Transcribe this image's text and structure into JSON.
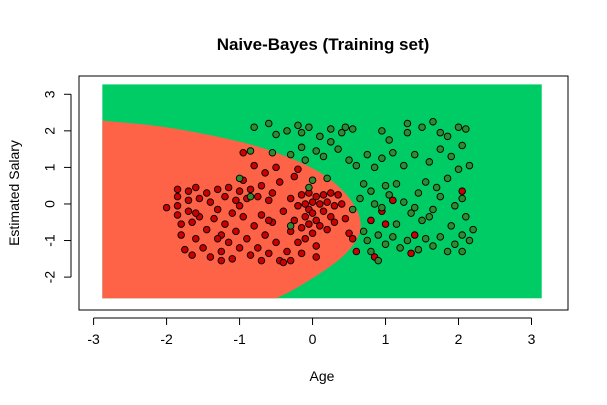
{
  "chart_data": {
    "type": "scatter",
    "title": "Naive-Bayes (Training set)",
    "xlabel": "Age",
    "ylabel": "Estimated Salary",
    "xlim": [
      -3.2,
      3.5
    ],
    "ylim": [
      -2.9,
      3.5
    ],
    "x_ticks": [
      -3,
      -2,
      -1,
      0,
      1,
      2,
      3
    ],
    "y_ticks": [
      -2,
      -1,
      0,
      1,
      2,
      3
    ],
    "grid": false,
    "colors": {
      "region_0": "#FF6347",
      "region_1": "#00CC66",
      "point_0": "#CC0000",
      "point_1": "#2E8B2E",
      "point_outline": "#000000",
      "frame": "#000000"
    },
    "decision_region": {
      "x_range": [
        -2.88,
        3.14
      ],
      "y_range": [
        -2.58,
        3.27
      ],
      "class_0_region": "inside the curved boundary on the left",
      "boundary": [
        {
          "x": -2.88,
          "y": 2.28
        },
        {
          "x": -2.0,
          "y": 2.12
        },
        {
          "x": -1.0,
          "y": 1.72
        },
        {
          "x": -0.5,
          "y": 1.42
        },
        {
          "x": 0.0,
          "y": 1.0
        },
        {
          "x": 0.3,
          "y": 0.6
        },
        {
          "x": 0.52,
          "y": 0.15
        },
        {
          "x": 0.66,
          "y": -0.35
        },
        {
          "x": 0.66,
          "y": -0.85
        },
        {
          "x": 0.45,
          "y": -1.4
        },
        {
          "x": 0.15,
          "y": -1.85
        },
        {
          "x": -0.3,
          "y": -2.4
        },
        {
          "x": -0.5,
          "y": -2.58
        }
      ]
    },
    "series": [
      {
        "class": 0,
        "points": [
          [
            -1.85,
            0.4
          ],
          [
            -1.85,
            0.2
          ],
          [
            -1.85,
            -0.05
          ],
          [
            -1.85,
            -0.3
          ],
          [
            -1.8,
            -0.55
          ],
          [
            -1.8,
            -0.85
          ],
          [
            -1.75,
            -1.25
          ],
          [
            -1.7,
            0.35
          ],
          [
            -1.7,
            0.1
          ],
          [
            -1.7,
            -0.2
          ],
          [
            -1.65,
            -0.5
          ],
          [
            -1.65,
            -1.4
          ],
          [
            -1.6,
            0.45
          ],
          [
            -1.6,
            -0.95
          ],
          [
            -1.55,
            0.15
          ],
          [
            -1.55,
            -0.35
          ],
          [
            -1.5,
            -1.2
          ],
          [
            -1.45,
            0.3
          ],
          [
            -1.45,
            -0.7
          ],
          [
            -1.4,
            0.05
          ],
          [
            -1.4,
            -1.45
          ],
          [
            -1.35,
            -0.4
          ],
          [
            -1.3,
            0.4
          ],
          [
            -1.3,
            -0.15
          ],
          [
            -1.25,
            -0.85
          ],
          [
            -1.25,
            -1.3
          ],
          [
            -1.2,
            0.2
          ],
          [
            -1.2,
            -0.55
          ],
          [
            -1.15,
            0.45
          ],
          [
            -1.15,
            -1.05
          ],
          [
            -1.1,
            -0.25
          ],
          [
            -1.1,
            -1.5
          ],
          [
            -1.05,
            0.1
          ],
          [
            -1.05,
            -0.75
          ],
          [
            -1.0,
            0.35
          ],
          [
            -1.0,
            -1.2
          ],
          [
            -0.95,
            -0.35
          ],
          [
            -0.95,
            0.65
          ],
          [
            -0.9,
            0.15
          ],
          [
            -0.9,
            -0.95
          ],
          [
            -0.85,
            -1.4
          ],
          [
            -0.85,
            0.4
          ],
          [
            -0.8,
            -0.6
          ],
          [
            -0.8,
            1.05
          ],
          [
            -0.75,
            0.2
          ],
          [
            -0.75,
            -1.2
          ],
          [
            -0.7,
            0.5
          ],
          [
            -0.7,
            -0.3
          ],
          [
            -0.7,
            -1.55
          ],
          [
            -0.65,
            0.85
          ],
          [
            -0.65,
            -0.85
          ],
          [
            -0.6,
            0.1
          ],
          [
            -0.6,
            -1.35
          ],
          [
            -0.55,
            0.3
          ],
          [
            -0.55,
            -0.5
          ],
          [
            -0.5,
            1.0
          ],
          [
            -0.5,
            -1.05
          ],
          [
            -0.45,
            0.6
          ],
          [
            -0.45,
            -1.55
          ],
          [
            -0.4,
            -0.2
          ],
          [
            -0.35,
            -1.3
          ],
          [
            -0.3,
            0.15
          ],
          [
            -0.3,
            -0.75
          ],
          [
            -0.25,
            0.75
          ],
          [
            -0.25,
            -0.45
          ],
          [
            -0.2,
            -1.05
          ],
          [
            -0.2,
            0.95
          ],
          [
            -0.15,
            0.25
          ],
          [
            -0.15,
            -0.65
          ],
          [
            -0.15,
            -1.35
          ],
          [
            -0.1,
            0.0
          ],
          [
            -0.1,
            -0.35
          ],
          [
            -0.1,
            -0.95
          ],
          [
            -0.05,
            0.3
          ],
          [
            -0.05,
            -0.15
          ],
          [
            -0.05,
            -0.55
          ],
          [
            0.0,
            0.05
          ],
          [
            0.0,
            -0.25
          ],
          [
            0.0,
            -0.8
          ],
          [
            0.05,
            0.2
          ],
          [
            0.05,
            -0.45
          ],
          [
            0.05,
            -1.15
          ],
          [
            0.1,
            0.0
          ],
          [
            0.1,
            -0.6
          ],
          [
            0.15,
            0.25
          ],
          [
            0.15,
            -0.2
          ],
          [
            0.2,
            -0.7
          ],
          [
            0.2,
            0.05
          ],
          [
            0.25,
            -0.35
          ],
          [
            0.25,
            0.3
          ],
          [
            0.3,
            -0.05
          ],
          [
            0.3,
            -0.5
          ],
          [
            0.35,
            0.25
          ],
          [
            0.4,
            0.0
          ],
          [
            0.45,
            -0.4
          ],
          [
            0.5,
            -0.8
          ],
          [
            0.55,
            -0.95
          ],
          [
            -2.0,
            -0.1
          ],
          [
            -1.6,
            -0.25
          ],
          [
            -1.3,
            -0.95
          ],
          [
            -1.0,
            -0.05
          ],
          [
            -0.6,
            -0.45
          ],
          [
            -0.3,
            -1.55
          ],
          [
            0.95,
            -0.2
          ],
          [
            1.1,
            0.1
          ],
          [
            0.8,
            -0.45
          ],
          [
            1.0,
            -0.55
          ],
          [
            1.4,
            -0.85
          ],
          [
            2.05,
            0.35
          ],
          [
            1.35,
            -1.35
          ],
          [
            0.85,
            -1.45
          ],
          [
            -0.95,
            1.4
          ],
          [
            0.6,
            -1.3
          ],
          [
            -0.4,
            -1.6
          ],
          [
            -1.25,
            -1.55
          ],
          [
            -0.2,
            -0.05
          ],
          [
            0.05,
            -1.45
          ]
        ]
      },
      {
        "class": 1,
        "points": [
          [
            -0.8,
            2.1
          ],
          [
            -0.6,
            2.2
          ],
          [
            -0.5,
            1.9
          ],
          [
            -0.35,
            2.0
          ],
          [
            -0.2,
            2.15
          ],
          [
            -0.05,
            2.1
          ],
          [
            0.1,
            1.85
          ],
          [
            0.25,
            1.7
          ],
          [
            0.4,
            1.95
          ],
          [
            0.55,
            2.05
          ],
          [
            0.95,
            2.0
          ],
          [
            1.05,
            1.75
          ],
          [
            1.3,
            1.95
          ],
          [
            1.5,
            2.1
          ],
          [
            1.65,
            2.25
          ],
          [
            1.75,
            1.95
          ],
          [
            2.0,
            2.1
          ],
          [
            2.1,
            2.05
          ],
          [
            -1.0,
            0.7
          ],
          [
            -0.85,
            0.2
          ],
          [
            -0.3,
            1.35
          ],
          [
            -0.15,
            1.55
          ],
          [
            -0.1,
            1.2
          ],
          [
            0.05,
            1.45
          ],
          [
            0.15,
            1.3
          ],
          [
            0.35,
            1.5
          ],
          [
            0.5,
            1.2
          ],
          [
            0.6,
            1.05
          ],
          [
            0.75,
            1.35
          ],
          [
            0.85,
            1.0
          ],
          [
            0.95,
            1.25
          ],
          [
            1.1,
            1.4
          ],
          [
            1.25,
            1.05
          ],
          [
            1.4,
            1.35
          ],
          [
            1.6,
            1.15
          ],
          [
            1.75,
            1.5
          ],
          [
            1.9,
            1.3
          ],
          [
            2.05,
            1.6
          ],
          [
            2.15,
            1.05
          ],
          [
            0.7,
            0.55
          ],
          [
            0.8,
            0.35
          ],
          [
            0.85,
            0.0
          ],
          [
            0.95,
            -0.1
          ],
          [
            1.05,
            0.25
          ],
          [
            1.15,
            0.55
          ],
          [
            1.25,
            0.05
          ],
          [
            1.35,
            -0.25
          ],
          [
            1.45,
            0.3
          ],
          [
            1.55,
            0.6
          ],
          [
            1.65,
            -0.15
          ],
          [
            1.75,
            0.2
          ],
          [
            1.85,
            0.7
          ],
          [
            1.95,
            -0.05
          ],
          [
            2.05,
            0.15
          ],
          [
            2.1,
            -0.35
          ],
          [
            0.7,
            -0.75
          ],
          [
            0.75,
            -1.0
          ],
          [
            0.8,
            -1.3
          ],
          [
            0.9,
            -0.85
          ],
          [
            1.0,
            -1.1
          ],
          [
            1.1,
            -0.9
          ],
          [
            1.2,
            -1.2
          ],
          [
            1.3,
            -1.0
          ],
          [
            1.45,
            -1.25
          ],
          [
            1.55,
            -0.95
          ],
          [
            1.65,
            -1.15
          ],
          [
            1.75,
            -0.9
          ],
          [
            1.85,
            -1.3
          ],
          [
            1.95,
            -1.1
          ],
          [
            2.05,
            -0.85
          ],
          [
            2.15,
            -1.0
          ],
          [
            2.2,
            -0.7
          ],
          [
            2.05,
            -1.3
          ],
          [
            1.9,
            -0.6
          ],
          [
            1.7,
            0.45
          ],
          [
            -0.55,
            1.4
          ],
          [
            0.0,
            0.65
          ],
          [
            0.2,
            0.7
          ],
          [
            -0.3,
            -0.6
          ],
          [
            -0.05,
            0.45
          ],
          [
            0.55,
            -0.15
          ],
          [
            0.65,
            0.15
          ],
          [
            1.0,
            0.5
          ],
          [
            1.15,
            -0.55
          ],
          [
            1.5,
            -0.45
          ],
          [
            -0.85,
            1.45
          ],
          [
            0.45,
            2.1
          ],
          [
            1.3,
            2.2
          ],
          [
            0.25,
            2.05
          ],
          [
            -0.15,
            1.95
          ],
          [
            1.85,
            1.85
          ],
          [
            2.0,
            0.95
          ],
          [
            0.9,
            -1.55
          ],
          [
            1.6,
            -0.35
          ],
          [
            1.4,
            -0.1
          ]
        ]
      }
    ]
  }
}
